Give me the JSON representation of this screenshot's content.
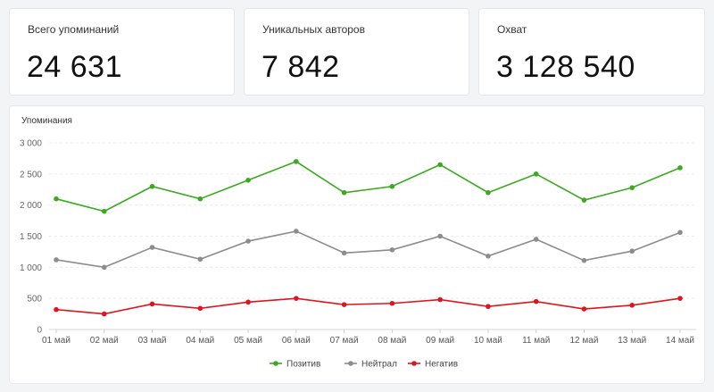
{
  "stats": [
    {
      "label": "Всего упоминаний",
      "value": "24 631"
    },
    {
      "label": "Уникальных авторов",
      "value": "7 842"
    },
    {
      "label": "Охват",
      "value": "3 128 540"
    }
  ],
  "chart_title": "Упоминания",
  "chart_data": {
    "type": "line",
    "title": "Упоминания",
    "xlabel": "",
    "ylabel": "",
    "ylim": [
      0,
      3000
    ],
    "yticks": [
      0,
      500,
      1000,
      1500,
      2000,
      2500,
      3000
    ],
    "ytick_labels": [
      "0",
      "500",
      "1 000",
      "1 500",
      "2 000",
      "2 500",
      "3 000"
    ],
    "categories": [
      "01 май",
      "02 май",
      "03 май",
      "04 май",
      "05 май",
      "06 май",
      "07 май",
      "08 май",
      "09 май",
      "10 май",
      "11 май",
      "12 май",
      "13 май",
      "14 май"
    ],
    "grid": true,
    "legend_position": "bottom-center",
    "series": [
      {
        "name": "Позитив",
        "color": "#3aaa1e",
        "values": [
          2100,
          1900,
          2300,
          2100,
          2400,
          2700,
          2200,
          2300,
          2650,
          2200,
          2500,
          2080,
          2280,
          2600
        ]
      },
      {
        "name": "Нейтрал",
        "color": "#8c8c8c",
        "values": [
          1120,
          1000,
          1320,
          1130,
          1420,
          1580,
          1230,
          1280,
          1500,
          1180,
          1450,
          1110,
          1260,
          1560
        ]
      },
      {
        "name": "Негатив",
        "color": "#e0141e",
        "values": [
          320,
          250,
          410,
          340,
          440,
          500,
          400,
          420,
          480,
          370,
          450,
          330,
          390,
          500
        ]
      }
    ]
  }
}
